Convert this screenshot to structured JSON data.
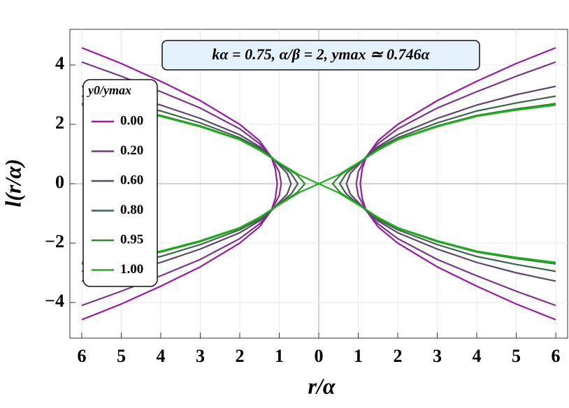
{
  "chart_data": {
    "type": "line",
    "annotation": "kα = 0.75,   α/β = 2,   ymax ≃ 0.746α",
    "x_label": "r/α",
    "y_label": "l(r/α)",
    "legend_title": "y0/ymax",
    "xlim": [
      -6.3,
      6.3
    ],
    "ylim": [
      -5.2,
      5.2
    ],
    "xticks": [
      {
        "value": -6,
        "label": "6"
      },
      {
        "value": -5,
        "label": "5"
      },
      {
        "value": -4,
        "label": "4"
      },
      {
        "value": -3,
        "label": "3"
      },
      {
        "value": -2,
        "label": "2"
      },
      {
        "value": -1,
        "label": "1"
      },
      0,
      1,
      2,
      3,
      4,
      5,
      6
    ],
    "yticks": [
      {
        "value": -4,
        "label": "−4"
      },
      {
        "value": -2,
        "label": "−2"
      },
      0,
      2,
      4
    ],
    "grid": true,
    "series": [
      {
        "name": "0.00",
        "color": "#9a1aa6",
        "x": [
          6,
          5,
          4,
          3,
          2,
          1.5,
          1.2,
          1.1,
          1.05,
          1.1,
          1.2,
          1.5,
          2,
          3,
          4,
          5,
          6,
          null,
          -6,
          -5,
          -4,
          -3,
          -2,
          -1.5,
          -1.2,
          -1.1,
          -1.05,
          -1.1,
          -1.2,
          -1.5,
          -2,
          -3,
          -4,
          -5,
          -6
        ],
        "values": [
          -4.58,
          -4.05,
          -3.45,
          -2.8,
          -2.0,
          -1.45,
          -0.9,
          -0.5,
          0,
          0.5,
          0.9,
          1.45,
          2.0,
          2.8,
          3.45,
          4.05,
          4.58,
          null,
          -4.58,
          -4.05,
          -3.45,
          -2.8,
          -2.0,
          -1.45,
          -0.9,
          -0.5,
          0,
          0.5,
          0.9,
          1.45,
          2.0,
          2.8,
          3.45,
          4.05,
          4.58
        ]
      },
      {
        "name": "0.20",
        "color": "#7a3488",
        "x": [
          6,
          5,
          4,
          3,
          2,
          1.5,
          1.2,
          1.0,
          0.95,
          1.0,
          1.2,
          1.5,
          2,
          3,
          4,
          5,
          6,
          null,
          -6,
          -5,
          -4,
          -3,
          -2,
          -1.5,
          -1.2,
          -1.0,
          -0.95,
          -1.0,
          -1.2,
          -1.5,
          -2,
          -3,
          -4,
          -5,
          -6
        ],
        "values": [
          -4.1,
          -3.62,
          -3.1,
          -2.55,
          -1.85,
          -1.35,
          -0.9,
          -0.4,
          0,
          0.4,
          0.9,
          1.35,
          1.85,
          2.55,
          3.1,
          3.62,
          4.1,
          null,
          -4.1,
          -3.62,
          -3.1,
          -2.55,
          -1.85,
          -1.35,
          -0.9,
          -0.4,
          0,
          0.4,
          0.9,
          1.35,
          1.85,
          2.55,
          3.1,
          3.62,
          4.1
        ]
      },
      {
        "name": "0.60",
        "color": "#5a4868",
        "x": [
          6,
          5,
          4,
          3,
          2,
          1.5,
          1.2,
          0.8,
          0.7,
          0.8,
          1.2,
          1.5,
          2,
          3,
          4,
          5,
          6,
          null,
          -6,
          -5,
          -4,
          -3,
          -2,
          -1.5,
          -1.2,
          -0.8,
          -0.7,
          -0.8,
          -1.2,
          -1.5,
          -2,
          -3,
          -4,
          -5,
          -6
        ],
        "values": [
          -3.28,
          -3.0,
          -2.65,
          -2.2,
          -1.65,
          -1.25,
          -0.9,
          -0.35,
          0,
          0.35,
          0.9,
          1.25,
          1.65,
          2.2,
          2.65,
          3.0,
          3.28,
          null,
          -3.28,
          -3.0,
          -2.65,
          -2.2,
          -1.65,
          -1.25,
          -0.9,
          -0.35,
          0,
          0.35,
          0.9,
          1.25,
          1.65,
          2.2,
          2.65,
          3.0,
          3.28
        ]
      },
      {
        "name": "0.80",
        "color": "#3d6548",
        "x": [
          6,
          5,
          4,
          3,
          2,
          1.5,
          1.2,
          0.7,
          0.53,
          0.7,
          1.2,
          1.5,
          2,
          3,
          4,
          5,
          6,
          null,
          -6,
          -5,
          -4,
          -3,
          -2,
          -1.5,
          -1.2,
          -0.7,
          -0.53,
          -0.7,
          -1.2,
          -1.5,
          -2,
          -3,
          -4,
          -5,
          -6
        ],
        "values": [
          -2.95,
          -2.72,
          -2.45,
          -2.05,
          -1.55,
          -1.2,
          -0.9,
          -0.35,
          0,
          0.35,
          0.9,
          1.2,
          1.55,
          2.05,
          2.45,
          2.72,
          2.95,
          null,
          -2.95,
          -2.72,
          -2.45,
          -2.05,
          -1.55,
          -1.2,
          -0.9,
          -0.35,
          0,
          0.35,
          0.9,
          1.2,
          1.55,
          2.05,
          2.45,
          2.72,
          2.95
        ]
      },
      {
        "name": "0.95",
        "color": "#2e8a2e",
        "x": [
          6,
          5,
          4,
          3,
          2,
          1.5,
          1.2,
          0.55,
          0.35,
          0.55,
          1.2,
          1.5,
          2,
          3,
          4,
          5,
          6,
          null,
          -6,
          -5,
          -4,
          -3,
          -2,
          -1.5,
          -1.2,
          -0.55,
          -0.35,
          -0.55,
          -1.2,
          -1.5,
          -2,
          -3,
          -4,
          -5,
          -6
        ],
        "values": [
          -2.7,
          -2.52,
          -2.3,
          -1.95,
          -1.5,
          -1.15,
          -0.88,
          -0.3,
          0,
          0.3,
          0.88,
          1.15,
          1.5,
          1.95,
          2.3,
          2.52,
          2.7,
          null,
          -2.7,
          -2.52,
          -2.3,
          -1.95,
          -1.5,
          -1.15,
          -0.88,
          -0.3,
          0,
          0.3,
          0.88,
          1.15,
          1.5,
          1.95,
          2.3,
          2.52,
          2.7
        ]
      },
      {
        "name": "1.00",
        "color": "#22b022",
        "x": [
          6,
          5,
          4,
          3,
          2,
          1.5,
          1.2,
          0.5,
          0,
          0.5,
          1.2,
          1.5,
          2,
          3,
          4,
          5,
          6,
          null,
          -6,
          -5,
          -4,
          -3,
          -2,
          -1.5,
          -1.2,
          -0.5,
          0,
          -0.5,
          -1.2,
          -1.5,
          -2,
          -3,
          -4,
          -5,
          -6
        ],
        "values": [
          -2.65,
          -2.48,
          -2.27,
          -1.92,
          -1.48,
          -1.13,
          -0.87,
          -0.3,
          0,
          0.3,
          0.87,
          1.13,
          1.48,
          1.92,
          2.27,
          2.48,
          2.65,
          null,
          -2.65,
          -2.48,
          -2.27,
          -1.92,
          -1.48,
          -1.13,
          -0.87,
          -0.3,
          0,
          0.3,
          0.87,
          1.13,
          1.48,
          1.92,
          2.27,
          2.48,
          2.65
        ]
      }
    ]
  }
}
